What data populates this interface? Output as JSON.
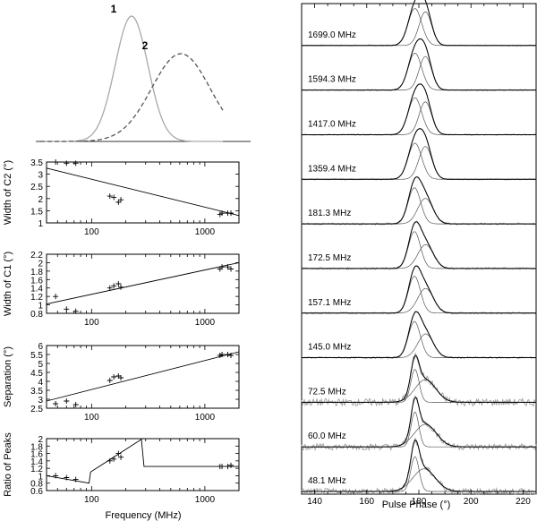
{
  "chart_data": [
    {
      "id": "components",
      "type": "line",
      "title": "",
      "series": [
        {
          "name": "1",
          "label": "1",
          "center": 0.5,
          "width": 0.09,
          "style": "solid",
          "color": "#a8a8a8"
        },
        {
          "name": "2",
          "label": "2",
          "center": 0.77,
          "width": 0.16,
          "style": "dashed",
          "color": "#555555"
        }
      ]
    },
    {
      "id": "width-c2",
      "type": "scatter",
      "ylabel": "Width of C2 (°)",
      "xlabel": "",
      "xscale": "log",
      "xlim": [
        40,
        2000
      ],
      "ylim": [
        1,
        3.5
      ],
      "yticks": [
        "1",
        "1.5",
        "2",
        "2.5",
        "3",
        "3.5"
      ],
      "xticks": [
        "100",
        "1000"
      ],
      "points": [
        [
          48.1,
          3.5
        ],
        [
          60,
          3.45
        ],
        [
          72.5,
          3.45
        ],
        [
          145,
          2.1
        ],
        [
          157.1,
          2.05
        ],
        [
          172.5,
          1.85
        ],
        [
          181.3,
          1.95
        ],
        [
          1359.4,
          1.35
        ],
        [
          1417,
          1.4
        ],
        [
          1594.3,
          1.4
        ],
        [
          1699,
          1.4
        ]
      ],
      "fit": [
        [
          40,
          3.25
        ],
        [
          2000,
          1.3
        ]
      ]
    },
    {
      "id": "width-c1",
      "type": "scatter",
      "ylabel": "Width of C1 (°)",
      "xlabel": "",
      "xscale": "log",
      "xlim": [
        40,
        2000
      ],
      "ylim": [
        0.8,
        2.2
      ],
      "yticks": [
        "0.8",
        "1",
        "1.2",
        "1.4",
        "1.6",
        "1.8",
        "2",
        "2.2"
      ],
      "xticks": [
        "100",
        "1000"
      ],
      "points": [
        [
          48.1,
          1.2
        ],
        [
          60,
          0.9
        ],
        [
          72.5,
          0.85
        ],
        [
          145,
          1.4
        ],
        [
          157.1,
          1.45
        ],
        [
          172.5,
          1.5
        ],
        [
          181.3,
          1.42
        ],
        [
          1359.4,
          1.85
        ],
        [
          1417,
          1.9
        ],
        [
          1594.3,
          1.9
        ],
        [
          1699,
          1.85
        ]
      ],
      "fit": [
        [
          40,
          1.02
        ],
        [
          2000,
          2.0
        ]
      ]
    },
    {
      "id": "separation",
      "type": "scatter",
      "ylabel": "Separation (°)",
      "xlabel": "",
      "xscale": "log",
      "xlim": [
        40,
        2000
      ],
      "ylim": [
        2.5,
        6
      ],
      "yticks": [
        "2.5",
        "3",
        "3.5",
        "4",
        "4.5",
        "5",
        "5.5",
        "6"
      ],
      "xticks": [
        "100",
        "1000"
      ],
      "points": [
        [
          48.1,
          2.75
        ],
        [
          60,
          2.9
        ],
        [
          72.5,
          2.7
        ],
        [
          145,
          4.05
        ],
        [
          157.1,
          4.25
        ],
        [
          172.5,
          4.3
        ],
        [
          181.3,
          4.2
        ],
        [
          1359.4,
          5.45
        ],
        [
          1417,
          5.5
        ],
        [
          1594.3,
          5.5
        ],
        [
          1699,
          5.45
        ]
      ],
      "fit": [
        [
          40,
          2.9
        ],
        [
          2000,
          5.65
        ]
      ]
    },
    {
      "id": "ratio",
      "type": "scatter",
      "ylabel": "Ratio of Peaks",
      "xlabel": "Frequency (MHz)",
      "xscale": "log",
      "xlim": [
        40,
        2000
      ],
      "ylim": [
        0.6,
        2
      ],
      "yticks": [
        "0.6",
        "0.8",
        "1",
        "1.2",
        "1.4",
        "1.6",
        "1.8",
        "2"
      ],
      "xticks": [
        "100",
        "1000"
      ],
      "points": [
        [
          48.1,
          1.0
        ],
        [
          60,
          0.95
        ],
        [
          72.5,
          0.9
        ],
        [
          145,
          1.4
        ],
        [
          157.1,
          1.45
        ],
        [
          172.5,
          1.6
        ],
        [
          181.3,
          1.5
        ],
        [
          1359.4,
          1.25
        ],
        [
          1417,
          1.25
        ],
        [
          1594.3,
          1.25
        ],
        [
          1699,
          1.28
        ]
      ],
      "fit": [
        [
          40,
          1.0
        ],
        [
          95,
          0.8
        ],
        [
          98,
          1.1
        ],
        [
          275,
          1.98
        ],
        [
          290,
          1.25
        ],
        [
          2000,
          1.25
        ]
      ]
    },
    {
      "id": "profiles",
      "type": "line",
      "xlabel": "Pulse Phase (°)",
      "xlim": [
        135,
        225
      ],
      "xticks": [
        "140",
        "160",
        "180",
        "200",
        "220"
      ],
      "profiles": [
        {
          "freq": "1699.0 MHz",
          "c1_center": 178.5,
          "c1_sigma": 2.6,
          "c1_amp": 0.9,
          "c2_center": 182.5,
          "c2_sigma": 2.4,
          "c2_amp": 0.82,
          "noise": 0.01
        },
        {
          "freq": "1594.3 MHz",
          "c1_center": 178.5,
          "c1_sigma": 2.6,
          "c1_amp": 0.9,
          "c2_center": 182.5,
          "c2_sigma": 2.4,
          "c2_amp": 0.82,
          "noise": 0.01
        },
        {
          "freq": "1417.0 MHz",
          "c1_center": 178.5,
          "c1_sigma": 2.6,
          "c1_amp": 0.9,
          "c2_center": 182.5,
          "c2_sigma": 2.4,
          "c2_amp": 0.8,
          "noise": 0.01
        },
        {
          "freq": "1359.4 MHz",
          "c1_center": 178.5,
          "c1_sigma": 2.6,
          "c1_amp": 0.88,
          "c2_center": 182.5,
          "c2_sigma": 2.5,
          "c2_amp": 0.8,
          "noise": 0.01
        },
        {
          "freq": "181.3 MHz",
          "c1_center": 178.3,
          "c1_sigma": 2.4,
          "c1_amp": 0.88,
          "c2_center": 182.5,
          "c2_sigma": 2.9,
          "c2_amp": 0.62,
          "noise": 0.015
        },
        {
          "freq": "172.5 MHz",
          "c1_center": 178.3,
          "c1_sigma": 2.3,
          "c1_amp": 0.9,
          "c2_center": 182.6,
          "c2_sigma": 3.0,
          "c2_amp": 0.58,
          "noise": 0.015
        },
        {
          "freq": "157.1 MHz",
          "c1_center": 178.3,
          "c1_sigma": 2.3,
          "c1_amp": 0.9,
          "c2_center": 182.6,
          "c2_sigma": 3.0,
          "c2_amp": 0.6,
          "noise": 0.015
        },
        {
          "freq": "145.0 MHz",
          "c1_center": 178.3,
          "c1_sigma": 2.3,
          "c1_amp": 0.88,
          "c2_center": 182.6,
          "c2_sigma": 3.0,
          "c2_amp": 0.58,
          "noise": 0.015
        },
        {
          "freq": "72.5 MHz",
          "c1_center": 178.5,
          "c1_sigma": 1.6,
          "c1_amp": 0.8,
          "c2_center": 182.5,
          "c2_sigma": 4.0,
          "c2_amp": 0.55,
          "noise": 0.06
        },
        {
          "freq": "60.0 MHz",
          "c1_center": 178.5,
          "c1_sigma": 1.5,
          "c1_amp": 0.85,
          "c2_center": 182.5,
          "c2_sigma": 4.2,
          "c2_amp": 0.55,
          "noise": 0.05
        },
        {
          "freq": "48.1 MHz",
          "c1_center": 178.5,
          "c1_sigma": 1.6,
          "c1_amp": 0.85,
          "c2_center": 182.0,
          "c2_sigma": 4.3,
          "c2_amp": 0.55,
          "noise": 0.05
        }
      ]
    }
  ]
}
